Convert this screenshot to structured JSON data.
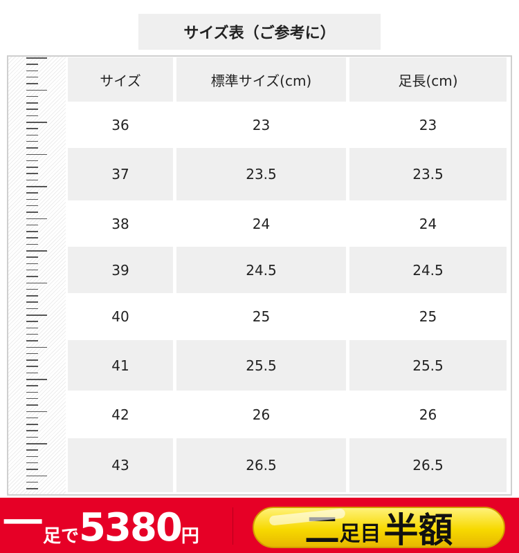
{
  "title": "サイズ表（ご参考に）",
  "table": {
    "headers": [
      "サイズ",
      "標準サイズ(cm)",
      "足長(cm)"
    ],
    "rows": [
      [
        "36",
        "23",
        "23"
      ],
      [
        "37",
        "23.5",
        "23.5"
      ],
      [
        "38",
        "24",
        "24"
      ],
      [
        "39",
        "24.5",
        "24.5"
      ],
      [
        "40",
        "25",
        "25"
      ],
      [
        "41",
        "25.5",
        "25.5"
      ],
      [
        "42",
        "26",
        "26"
      ],
      [
        "43",
        "26.5",
        "26.5"
      ]
    ]
  },
  "banner": {
    "left": {
      "one": "一",
      "foot": "足で",
      "price": "5380",
      "yen": "円"
    },
    "right": {
      "two": "二",
      "foot": "足目",
      "half": "半額"
    },
    "colors": {
      "red": "#e60026",
      "yellow": "#f7d900"
    }
  }
}
